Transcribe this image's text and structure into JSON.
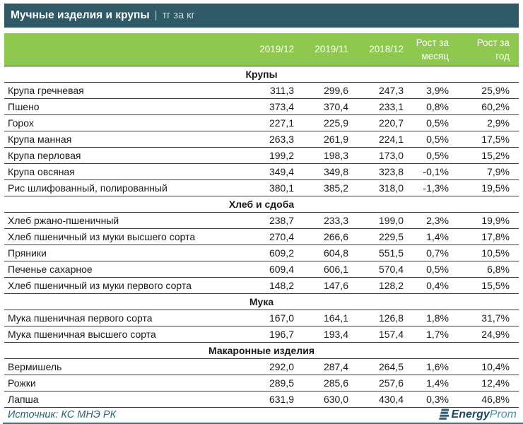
{
  "titlebar": {
    "main": "Мучные изделия и крупы",
    "divider": "|",
    "unit": "тг за кг"
  },
  "chart_data": {
    "type": "table",
    "title": "Мучные изделия и крупы",
    "unit": "тг за кг",
    "header": {
      "product": "",
      "y1": "2019/12",
      "y2": "2019/11",
      "y3": "2018/12",
      "m": [
        "Рост за",
        "месяц"
      ],
      "g": [
        "Рост за",
        "год"
      ]
    },
    "sections": [
      {
        "name": "Крупы",
        "rows": [
          {
            "product": "Крупа гречневая",
            "values": [
              "311,3",
              "299,6",
              "247,3",
              "3,9%",
              "25,9%"
            ]
          },
          {
            "product": "Пшено",
            "values": [
              "373,4",
              "370,4",
              "233,1",
              "0,8%",
              "60,2%"
            ]
          },
          {
            "product": "Горох",
            "values": [
              "227,1",
              "225,9",
              "220,7",
              "0,5%",
              "2,9%"
            ]
          },
          {
            "product": "Крупа манная",
            "values": [
              "263,3",
              "261,9",
              "224,1",
              "0,5%",
              "17,5%"
            ]
          },
          {
            "product": "Крупа перловая",
            "values": [
              "199,2",
              "198,3",
              "173,0",
              "0,5%",
              "15,2%"
            ]
          },
          {
            "product": "Крупа овсяная",
            "values": [
              "349,4",
              "349,8",
              "323,8",
              "-0,1%",
              "7,9%"
            ]
          },
          {
            "product": "Рис шлифованный, полированный",
            "values": [
              "380,1",
              "385,2",
              "318,0",
              "-1,3%",
              "19,5%"
            ]
          }
        ]
      },
      {
        "name": "Хлеб и сдоба",
        "rows": [
          {
            "product": "Хлеб ржано-пшеничный",
            "values": [
              "238,7",
              "233,3",
              "199,0",
              "2,3%",
              "19,9%"
            ]
          },
          {
            "product": "Хлеб пшеничный из муки высшего сорта",
            "values": [
              "270,4",
              "266,6",
              "229,5",
              "1,4%",
              "17,8%"
            ]
          },
          {
            "product": "Пряники",
            "values": [
              "609,2",
              "604,8",
              "551,5",
              "0,7%",
              "10,5%"
            ]
          },
          {
            "product": "Печенье сахарное",
            "values": [
              "609,4",
              "606,1",
              "570,4",
              "0,5%",
              "6,8%"
            ]
          },
          {
            "product": "Хлеб пшеничный из муки первого сорта",
            "values": [
              "148,2",
              "147,6",
              "128,2",
              "0,4%",
              "15,5%"
            ]
          }
        ]
      },
      {
        "name": "Мука",
        "rows": [
          {
            "product": "Мука пшеничная первого сорта",
            "values": [
              "167,0",
              "164,1",
              "126,8",
              "1,8%",
              "31,7%"
            ]
          },
          {
            "product": "Мука пшеничная высшего сорта",
            "values": [
              "196,7",
              "193,4",
              "157,4",
              "1,7%",
              "24,9%"
            ]
          }
        ]
      },
      {
        "name": "Макаронные изделия",
        "rows": [
          {
            "product": "Вермишель",
            "values": [
              "292,0",
              "287,4",
              "264,5",
              "1,6%",
              "10,4%"
            ]
          },
          {
            "product": "Рожки",
            "values": [
              "289,5",
              "285,6",
              "257,6",
              "1,4%",
              "12,4%"
            ]
          },
          {
            "product": "Лапша",
            "values": [
              "631,9",
              "630,0",
              "430,4",
              "0,3%",
              "46,8%"
            ]
          }
        ]
      }
    ],
    "source": "Источник: КС МНЭ РК"
  },
  "footer": {
    "source": "Источник: КС МНЭ РК",
    "logo": {
      "bold": "Energy",
      "light": "Prom"
    }
  },
  "colors": {
    "titlebar_bg": "#2E5A68",
    "header_bg": "#8EC84F",
    "row_line": "#3B3B3B",
    "accent_bar": "#2A7A8C",
    "source_text": "#26647C",
    "logo_dark": "#1E4A5F",
    "logo_light": "#4E93AB",
    "logo_icon": "#2C6377"
  }
}
